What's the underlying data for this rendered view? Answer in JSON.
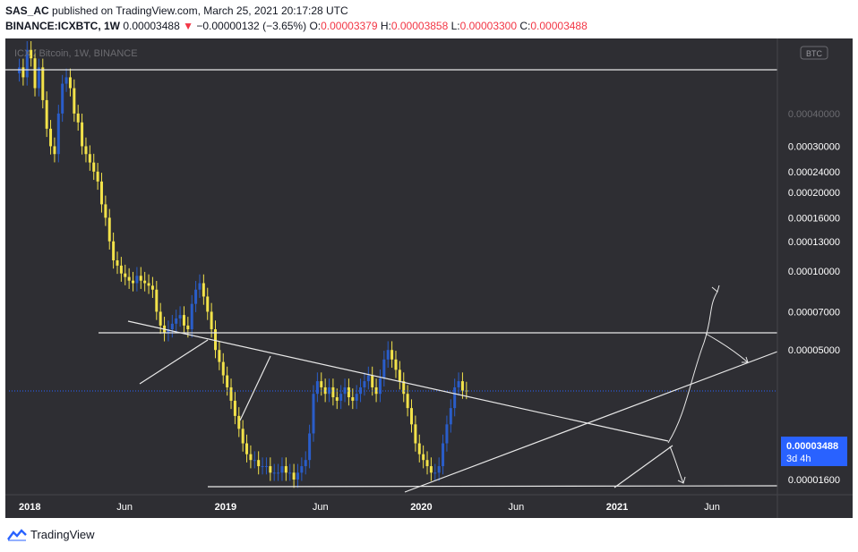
{
  "header": {
    "line1_author": "SAS_AC",
    "line1_rest": " published on TradingView.com, March 25, 2021 20:17:28 UTC",
    "symbol": "BINANCE:ICXBTC, 1W",
    "last": "0.00003488",
    "change_arrow": "▼",
    "change": "−0.00000132 (−3.65%)",
    "o_label": "O:",
    "o_value": "0.00003379",
    "h_label": "H:",
    "h_value": "0.00003858",
    "l_label": "L:",
    "l_value": "0.00003300",
    "c_label": "C:",
    "c_value": "0.00003488"
  },
  "chart_watermark": "ICX / Bitcoin, 1W, BINANCE",
  "currency_badge": "BTC",
  "price_label": {
    "value": "0.00003488",
    "countdown": "3d 4h"
  },
  "footer": {
    "brand": "TradingView"
  },
  "colors": {
    "background": "#2e2e33",
    "axis_text_light": "#ffffff",
    "axis_text_dim": "#6b6b70",
    "up_candle": "#2a5dc9",
    "down_candle": "#f2e24a",
    "lines": "#e8e8e8",
    "price_badge": "#2962ff",
    "header_red": "#f23645"
  },
  "chart_data": {
    "type": "candlestick",
    "y_scale": "log",
    "ylim": [
      1.4e-05,
      0.00075
    ],
    "x_ticks": [
      "2018",
      "Jun",
      "2019",
      "Jun",
      "2020",
      "Jun",
      "2021",
      "Jun"
    ],
    "x_ticks_bold": [
      "2018",
      "2019",
      "2020",
      "2021"
    ],
    "y_ticks": [
      {
        "label": "0.00040000",
        "value": 0.0004,
        "dim": true
      },
      {
        "label": "0.00030000",
        "value": 0.0003,
        "dim": false
      },
      {
        "label": "0.00024000",
        "value": 0.00024,
        "dim": false
      },
      {
        "label": "0.00020000",
        "value": 0.0002,
        "dim": false
      },
      {
        "label": "0.00016000",
        "value": 0.00016,
        "dim": false
      },
      {
        "label": "0.00013000",
        "value": 0.00013,
        "dim": false
      },
      {
        "label": "0.00010000",
        "value": 0.0001,
        "dim": false
      },
      {
        "label": "0.00007000",
        "value": 7e-05,
        "dim": false
      },
      {
        "label": "0.00005000",
        "value": 5e-05,
        "dim": false
      },
      {
        "label": "0.00001600",
        "value": 1.6e-05,
        "dim": false
      }
    ],
    "series": [
      {
        "name": "ICXBTC",
        "start_month": "2018-01",
        "weekly_close": [
          0.0006,
          0.00055,
          0.0007,
          0.00065,
          0.0005,
          0.0006,
          0.00045,
          0.00035,
          0.0003,
          0.00028,
          0.0004,
          0.00052,
          0.00055,
          0.0005,
          0.0004,
          0.00037,
          0.0003,
          0.00028,
          0.00026,
          0.00024,
          0.00022,
          0.00018,
          0.00016,
          0.00013,
          0.00011,
          0.000105,
          9.8e-05,
          9.5e-05,
          9.2e-05,
          9e-05,
          9.6e-05,
          9.2e-05,
          9e-05,
          8.8e-05,
          8.5e-05,
          7e-05,
          6.2e-05,
          5.8e-05,
          6e-05,
          6.3e-05,
          6.6e-05,
          6.8e-05,
          6.2e-05,
          6e-05,
          7.5e-05,
          8.5e-05,
          9e-05,
          8e-05,
          7e-05,
          6e-05,
          5e-05,
          4.5e-05,
          4e-05,
          3.6e-05,
          3.2e-05,
          2.8e-05,
          2.5e-05,
          2.2e-05,
          2e-05,
          1.9e-05,
          1.9e-05,
          1.8e-05,
          1.8e-05,
          1.8e-05,
          1.7e-05,
          1.7e-05,
          1.7e-05,
          1.8e-05,
          1.7e-05,
          1.7e-05,
          1.6e-05,
          1.7e-05,
          1.8e-05,
          1.9e-05,
          2.4e-05,
          3.4e-05,
          3.8e-05,
          3.6e-05,
          3.4e-05,
          3.6e-05,
          3.3e-05,
          3.2e-05,
          3.4e-05,
          3.6e-05,
          3.3e-05,
          3.2e-05,
          3.4e-05,
          3.6e-05,
          3.8e-05,
          4e-05,
          3.6e-05,
          3.4e-05,
          3.9e-05,
          4.6e-05,
          5e-05,
          4.6e-05,
          4.2e-05,
          3.8e-05,
          3.4e-05,
          3e-05,
          2.6e-05,
          2.2e-05,
          2e-05,
          1.9e-05,
          1.8e-05,
          1.7e-05,
          1.7e-05,
          1.8e-05,
          2.2e-05,
          2.6e-05,
          3e-05,
          3.6e-05,
          3.8e-05,
          3.5e-05,
          3.49e-05
        ]
      }
    ],
    "last_price": 3.488e-05
  }
}
